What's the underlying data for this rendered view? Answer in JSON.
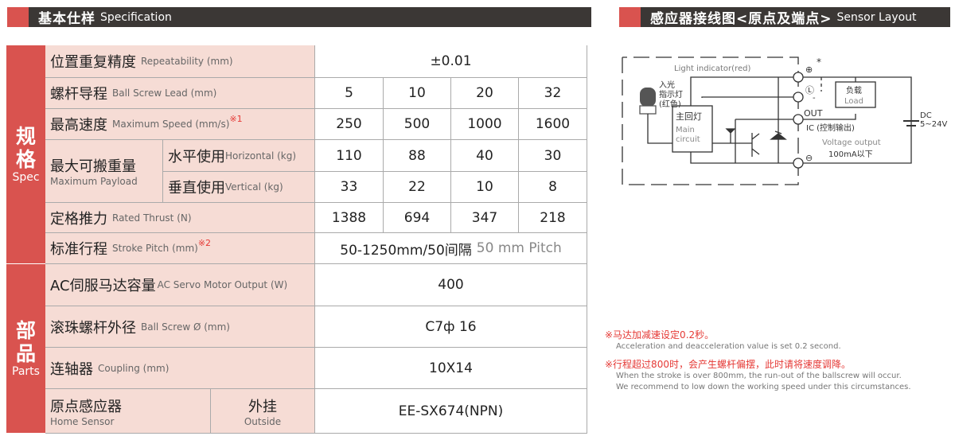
{
  "spec_header": {
    "zh": "基本仕样",
    "en": "Specification"
  },
  "sensor_header": {
    "zh": "感应器接线图<原点及端点>",
    "en": "Sensor Layout"
  },
  "groups": {
    "spec": {
      "zh1": "规",
      "zh2": "格",
      "en": "Spec"
    },
    "parts": {
      "zh1": "部",
      "zh2": "品",
      "en": "Parts"
    }
  },
  "rows": {
    "repeat": {
      "zh": "位置重复精度",
      "en": "Repeatability (mm)",
      "value": "±0.01"
    },
    "lead": {
      "zh": "螺杆导程",
      "en": "Ball Screw Lead (mm)",
      "values": [
        "5",
        "10",
        "20",
        "32"
      ]
    },
    "speed": {
      "zh": "最高速度",
      "en": "Maximum Speed (mm/s)",
      "note": "※1",
      "values": [
        "250",
        "500",
        "1000",
        "1600"
      ]
    },
    "payload": {
      "zh": "最大可搬重量",
      "en": "Maximum Payload",
      "horizontal": {
        "zh": "水平使用",
        "en": "Horizontal (kg)",
        "values": [
          "110",
          "88",
          "40",
          "30"
        ]
      },
      "vertical": {
        "zh": "垂直使用",
        "en": "Vertical (kg)",
        "values": [
          "33",
          "22",
          "10",
          "8"
        ]
      }
    },
    "thrust": {
      "zh": "定格推力",
      "en": "Rated Thrust (N)",
      "values": [
        "1388",
        "694",
        "347",
        "218"
      ]
    },
    "stroke": {
      "zh": "标准行程",
      "en": "Stroke Pitch (mm)",
      "note": "※2",
      "value": "50-1250mm/50间隔",
      "value_en": "50 mm Pitch"
    },
    "motor": {
      "zh": "AC伺服马达容量",
      "en": "AC Servo Motor Output (W)",
      "value": "400"
    },
    "screw": {
      "zh": "滚珠螺杆外径",
      "en": "Ball Screw Ø (mm)",
      "value": "C7ф 16"
    },
    "coupling": {
      "zh": "连轴器",
      "en": "Coupling (mm)",
      "value": "10X14"
    },
    "home": {
      "zh": "原点感应器",
      "en": "Home Sensor",
      "sub_zh": "外挂",
      "sub_en": "Outside",
      "value": "EE-SX674(NPN)"
    }
  },
  "diagram": {
    "light_indicator": "Light indicator(red)",
    "led_zh": [
      "入光",
      "指示灯",
      "(红色)"
    ],
    "main_zh": "主回灯",
    "main_en": [
      "Main",
      "circuit"
    ],
    "load_zh": "负载",
    "load_en": "Load",
    "out": "OUT",
    "ic": "IC (控制输出)",
    "voltage": "Voltage output",
    "current": "100mA以下",
    "dc": "DC",
    "dc_range": "5~24V",
    "star": "*",
    "minus": "-"
  },
  "footnotes": [
    {
      "zh": "※马达加减速设定0.2秒。",
      "en": [
        "Acceleration and deacceleration value is set 0.2 second."
      ]
    },
    {
      "zh": "※行程超过800时，会产生螺杆偏摆，此时请将速度调降。",
      "en": [
        "When the stroke is over 800mm, the run-out of the ballscrew will occur.",
        "We recommend to low down the working speed under this circumstances."
      ]
    }
  ],
  "colors": {
    "accent": "#d9534f",
    "header": "#3b3735",
    "label_bg": "#f6dcd5"
  }
}
